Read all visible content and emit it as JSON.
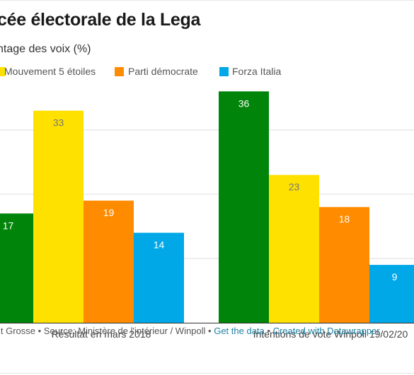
{
  "title": "cée électorale de la Lega",
  "subtitle": "ntage des voix (%)",
  "legend": [
    {
      "label": "Mouvement 5 étoiles",
      "color": "#ffe100"
    },
    {
      "label": "Parti démocrate",
      "color": "#ff8c00"
    },
    {
      "label": "Forza Italia",
      "color": "#00a8e8"
    }
  ],
  "footer": {
    "credit": "lt Grosse • Source: Ministère de l'intérieur / Winpoll •",
    "get_data": "Get the data",
    "sep": "•",
    "created": "Created with Datawrapper"
  },
  "chart_data": {
    "type": "bar",
    "categories": [
      "Résultat en mars 2018",
      "Intentions de vote Winpoll 19/02/20"
    ],
    "series": [
      {
        "color": "#00840a",
        "values": [
          17,
          36
        ]
      },
      {
        "name": "Mouvement 5 étoiles",
        "color": "#ffe100",
        "values": [
          33,
          23
        ]
      },
      {
        "name": "Parti démocrate",
        "color": "#ff8c00",
        "values": [
          19,
          18
        ]
      },
      {
        "name": "Forza Italia",
        "color": "#00a8e8",
        "values": [
          14,
          9
        ]
      }
    ],
    "ylim": [
      0,
      40
    ],
    "grid": true,
    "legend_position": "top",
    "label_colors": [
      "#ffffff",
      "#777777",
      "#ffffff",
      "#ffffff"
    ]
  }
}
